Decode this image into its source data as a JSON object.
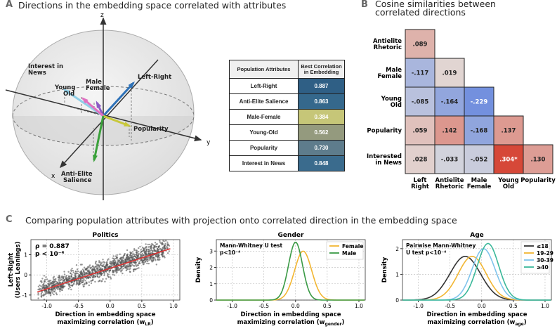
{
  "panel_labels": {
    "a": "A",
    "b": "B",
    "c": "C"
  },
  "titles": {
    "a": "Directions in the embedding space correlated with attributes",
    "b_line1": "Cosine similarities between",
    "b_line2": "correlated directions",
    "c": "Comparing population attributes with projection onto correlated direction in the embedding space"
  },
  "sphere": {
    "axis_z": "z",
    "axis_x": "x",
    "axis_y": "y",
    "vectors": [
      {
        "label": "Interest in News",
        "line1": "Interest in",
        "line2": "News",
        "color": "#8ecfe8"
      },
      {
        "label": "Left-Right",
        "line1": "Left-Right",
        "line2": "",
        "color": "#2e72b8"
      },
      {
        "label": "Male-Female",
        "line1": "Male",
        "line2": "Female",
        "color": "#8d5cc5"
      },
      {
        "label": "Young-Old",
        "line1": "Young",
        "line2": "Old",
        "color": "#e070c0"
      },
      {
        "label": "Popularity",
        "line1": "Popularity",
        "line2": "",
        "color": "#c8c83a"
      },
      {
        "label": "Anti-Elite Salience",
        "line1": "Anti-Elite",
        "line2": "Salience",
        "color": "#3aa13a"
      }
    ]
  },
  "table": {
    "header_attr": "Population Attributes",
    "header_corr_line1": "Best Correlation",
    "header_corr_line2": "in Embedding",
    "rows": [
      {
        "attribute": "Left-Right",
        "value": "0.887",
        "color": "#2f5f85"
      },
      {
        "attribute": "Anti-Elite Salience",
        "value": "0.863",
        "color": "#35688c"
      },
      {
        "attribute": "Male-Female",
        "value": "0.384",
        "color": "#c6c678"
      },
      {
        "attribute": "Young-Old",
        "value": "0.562",
        "color": "#949a7e"
      },
      {
        "attribute": "Popularity",
        "value": "0.730",
        "color": "#5e7c8c"
      },
      {
        "attribute": "Interest in News",
        "value": "0.848",
        "color": "#3a6b8d"
      }
    ]
  },
  "chart_data": [
    {
      "type": "heatmap",
      "title": "Cosine similarities between correlated directions",
      "row_labels": [
        [
          "Antielite",
          "Rhetoric"
        ],
        [
          "Male",
          "Female"
        ],
        [
          "Young",
          "Old"
        ],
        [
          "Popularity"
        ],
        [
          "Interested",
          "in News"
        ]
      ],
      "col_labels": [
        [
          "Left",
          "Right"
        ],
        [
          "Antielite",
          "Rhetoric"
        ],
        [
          "Male",
          "Female"
        ],
        [
          "Young",
          "Old"
        ],
        [
          "Popularity"
        ]
      ],
      "cells": [
        [
          {
            "text": ".089",
            "v": 0.089
          }
        ],
        [
          {
            "text": "-.117",
            "v": -0.117
          },
          {
            "text": ".019",
            "v": 0.019
          }
        ],
        [
          {
            "text": "-.085",
            "v": -0.085
          },
          {
            "text": "-.164",
            "v": -0.164
          },
          {
            "text": "-.229",
            "v": -0.229
          }
        ],
        [
          {
            "text": ".059",
            "v": 0.059
          },
          {
            "text": ".142",
            "v": 0.142
          },
          {
            "text": "-.168",
            "v": -0.168
          },
          {
            "text": ".137",
            "v": 0.137
          }
        ],
        [
          {
            "text": ".028",
            "v": 0.028
          },
          {
            "text": "-.033",
            "v": -0.033
          },
          {
            "text": "-.052",
            "v": -0.052
          },
          {
            "text": ".304*",
            "v": 0.304
          },
          {
            "text": ".130",
            "v": 0.13
          }
        ]
      ]
    },
    {
      "type": "scatter",
      "title": "Politics",
      "ylabel_line1": "Left-Right",
      "ylabel_line2": "(Users Leanings)",
      "xlabel_line1": "Direction in embedding space",
      "xlabel_line2_main": "maximizing correlation (w",
      "xlabel_line2_sub": "LR",
      "xlabel_line2_end": ")",
      "xlim": [
        -1.25,
        1.1
      ],
      "ylim": [
        -1.25,
        1.75
      ],
      "xticks": [
        "-1.0",
        "-0.5",
        "0.0",
        "0.5",
        "1.0"
      ],
      "xtick_values": [
        -1.0,
        -0.5,
        0.0,
        0.5,
        1.0
      ],
      "yticks": [
        "-1",
        "0",
        "1"
      ],
      "ytick_values": [
        -1,
        0,
        1
      ],
      "annotation_line1": "ρ = 0.887",
      "annotation_line2": "p < 10⁻⁴",
      "point_color": "#555555",
      "fit_color": "#e03030",
      "fit_line": {
        "x": [
          -1.15,
          0.95
        ],
        "y": [
          -0.85,
          1.3
        ]
      }
    },
    {
      "type": "line",
      "title": "Gender",
      "ylabel": "Density",
      "xlabel_line1": "Direction in embedding space",
      "xlabel_line2_main": "maximizing correlation (w",
      "xlabel_line2_sub": "gender",
      "xlabel_line2_end": ")",
      "xlim": [
        -1.25,
        1.1
      ],
      "ylim": [
        0,
        3.7
      ],
      "xticks": [
        "-1.0",
        "-0.5",
        "0.0",
        "0.5",
        "1.0"
      ],
      "xtick_values": [
        -1.0,
        -0.5,
        0.0,
        0.5,
        1.0
      ],
      "yticks": [
        "0",
        "1",
        "2",
        "3"
      ],
      "ytick_values": [
        0,
        1,
        2,
        3
      ],
      "annotation_line1": "Mann-Whitney U test",
      "annotation_line2": "p<10⁻⁴",
      "series": [
        {
          "name": "Female",
          "color": "#f2b632",
          "mean": 0.12,
          "sd": 0.135,
          "peak": 3.0
        },
        {
          "name": "Male",
          "color": "#3a9a45",
          "mean": 0.0,
          "sd": 0.11,
          "peak": 3.55
        }
      ]
    },
    {
      "type": "line",
      "title": "Age",
      "ylabel": "Density",
      "xlabel_line1": "Direction in embedding space",
      "xlabel_line2_main": "maximizing correlation (w",
      "xlabel_line2_sub": "age",
      "xlabel_line2_end": ")",
      "xlim": [
        -1.25,
        1.1
      ],
      "ylim": [
        0,
        2.35
      ],
      "xticks": [
        "-1.0",
        "-0.5",
        "0.0",
        "0.5",
        "1.0"
      ],
      "xtick_values": [
        -1.0,
        -0.5,
        0.0,
        0.5,
        1.0
      ],
      "yticks": [
        "0",
        "1",
        "2"
      ],
      "ytick_values": [
        0,
        1,
        2
      ],
      "annotation_line1": "Pairwise Mann-Whitney",
      "annotation_line2": "U test p<10⁻⁴",
      "series": [
        {
          "name": "≤18",
          "color": "#333333",
          "mean": -0.26,
          "sd": 0.24,
          "peak": 1.7
        },
        {
          "name": "19-29",
          "color": "#f2b632",
          "mean": -0.15,
          "sd": 0.22,
          "peak": 1.7
        },
        {
          "name": "30-39",
          "color": "#7fc4ec",
          "mean": 0.03,
          "sd": 0.18,
          "peak": 2.0
        },
        {
          "name": "≥40",
          "color": "#3bb89a",
          "mean": 0.1,
          "sd": 0.17,
          "peak": 2.2
        }
      ]
    }
  ]
}
